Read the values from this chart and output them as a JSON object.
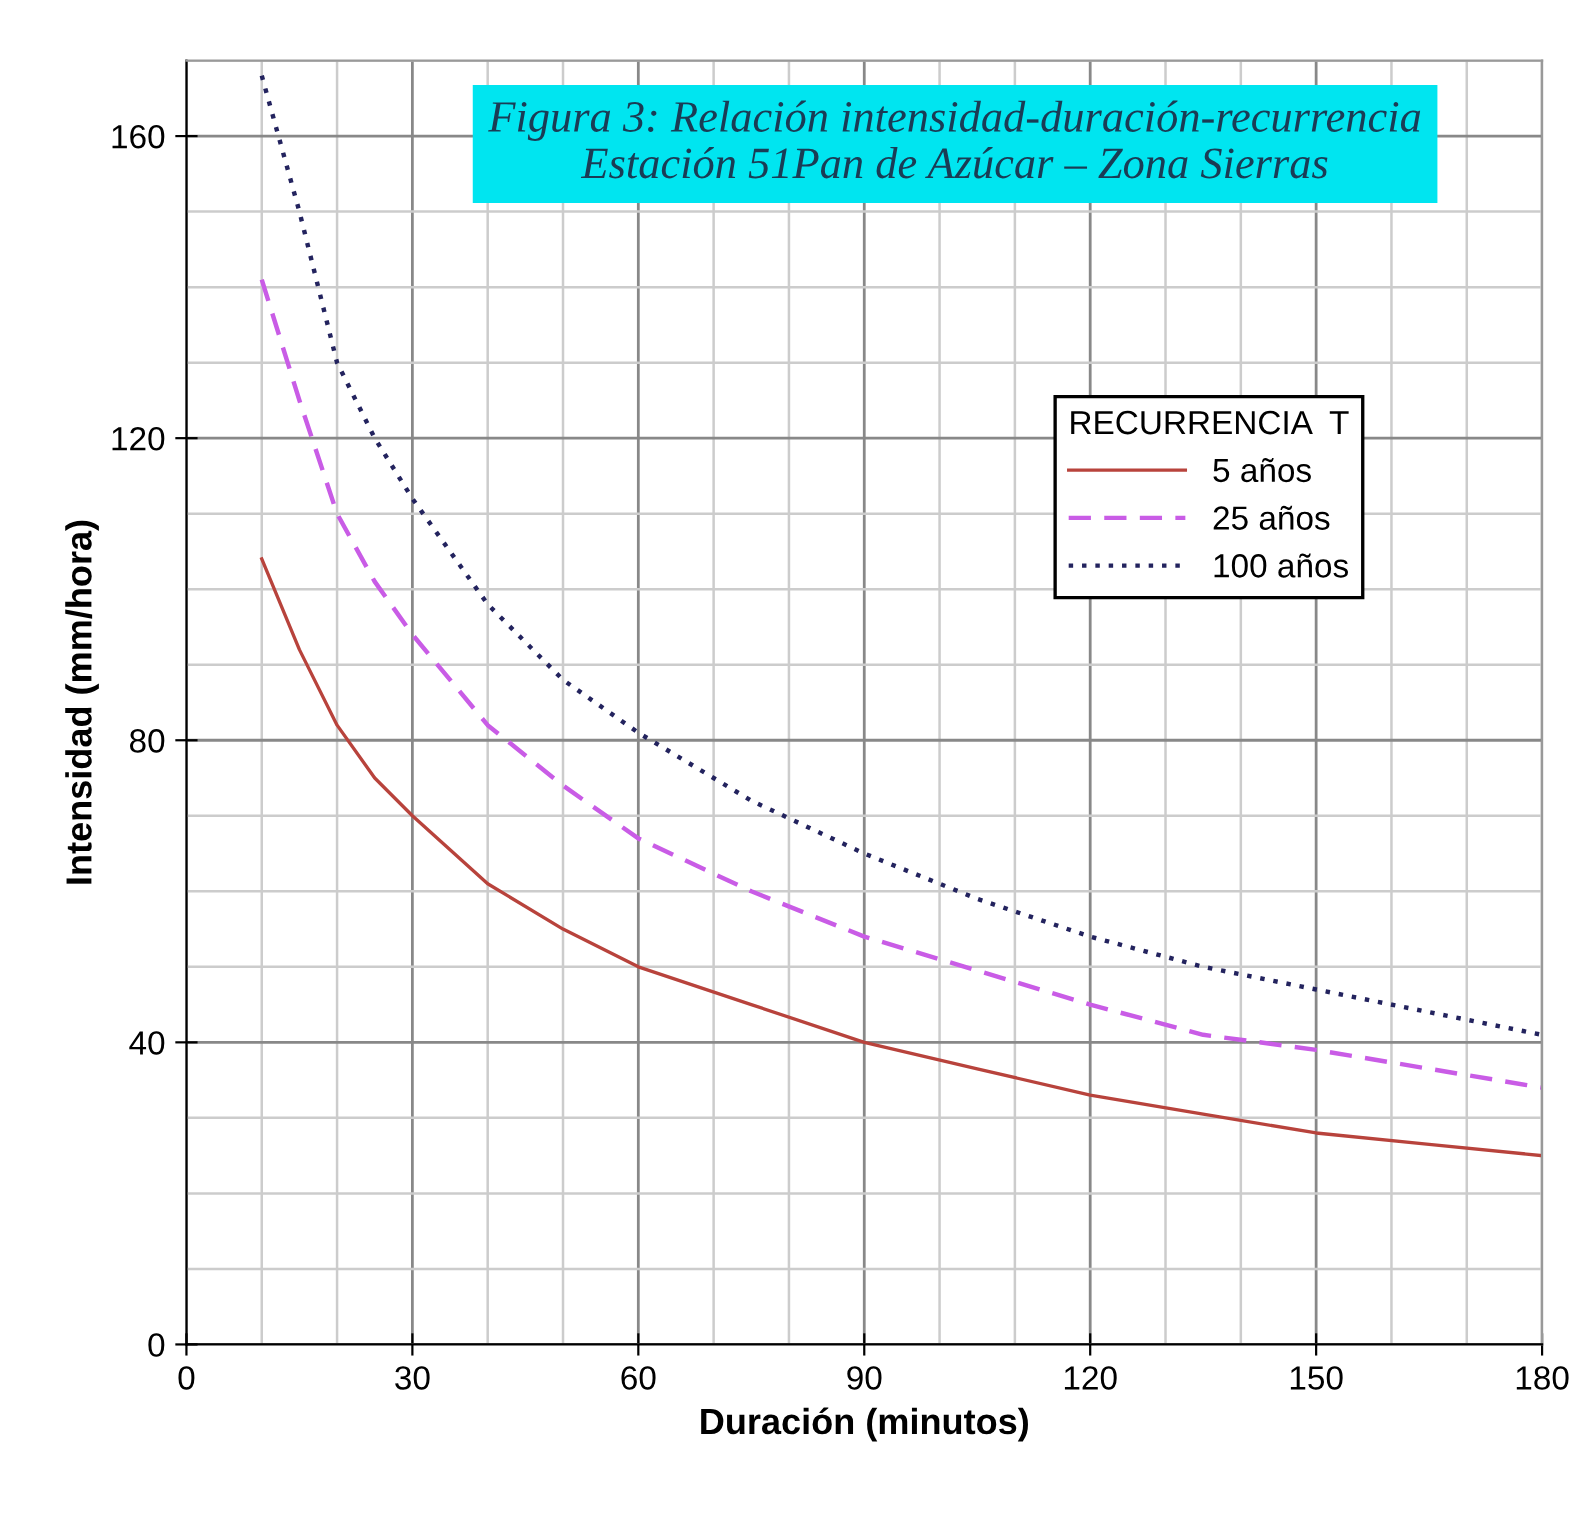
{
  "chart_data": {
    "type": "line",
    "title": "Figura 3: Relación intensidad-duración-recurrencia\nEstación 51Pan de Azúcar – Zona Sierras",
    "xlabel": "Duración (minutos)",
    "ylabel": "Intensidad (mm/hora)",
    "legend_title": "RECURRENCIA  T",
    "x": [
      10,
      15,
      20,
      25,
      30,
      40,
      50,
      60,
      75,
      90,
      105,
      120,
      135,
      150,
      165,
      180
    ],
    "series": [
      {
        "name": "5 años",
        "color": "#b8433c",
        "line_style": "solid",
        "values": [
          104,
          92,
          82,
          75,
          70,
          61,
          55,
          50,
          45,
          40,
          36.5,
          33,
          30.5,
          28,
          26.5,
          25
        ]
      },
      {
        "name": "25 años",
        "color": "#c95ce6",
        "line_style": "dashed",
        "values": [
          141,
          125,
          110,
          101,
          94,
          82,
          74,
          67,
          60,
          54,
          49.5,
          45,
          41,
          39,
          36.5,
          34
        ]
      },
      {
        "name": "100 años",
        "color": "#23235e",
        "line_style": "dotted",
        "values": [
          168,
          150,
          130,
          120,
          112,
          98,
          88,
          81,
          72,
          65,
          59,
          54,
          50,
          47,
          44,
          41
        ]
      }
    ],
    "xlim": [
      0,
      180
    ],
    "ylim": [
      0,
      170
    ],
    "xticks": [
      0,
      30,
      60,
      90,
      120,
      150,
      180
    ],
    "yticks": [
      0,
      40,
      80,
      120,
      160
    ],
    "grid": true,
    "legend": "right"
  }
}
